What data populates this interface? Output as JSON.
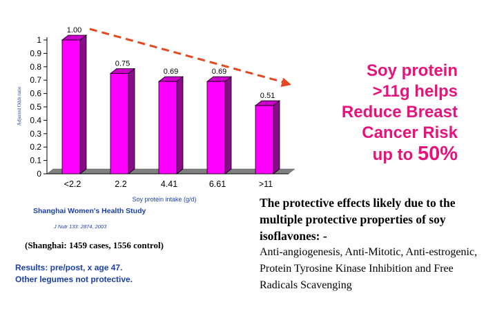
{
  "chart_data": {
    "type": "bar",
    "categories": [
      "<2.2",
      "2.2",
      "4.41",
      "6.61",
      ">11"
    ],
    "values": [
      1.0,
      0.75,
      0.69,
      0.69,
      0.51
    ],
    "data_labels": [
      "1.00",
      "0.75",
      "0.69",
      "0.69",
      "0.51"
    ],
    "xlabel": "Soy protein intake (g/d)",
    "ylabel": "Adjusted Odds ratio",
    "ylim": [
      0,
      1
    ],
    "yticks": [
      "0",
      "0.1",
      "0.2",
      "0.3",
      "0.4",
      "0.5",
      "0.6",
      "0.7",
      "0.8",
      "0.9",
      "1"
    ],
    "grid": false,
    "bar_color": "#ff00ff",
    "trend_arrow_color": "#e8461e"
  },
  "headline": {
    "line1": "Soy protein",
    "line2": ">11g helps",
    "line3": "Reduce Breast",
    "line4": "Cancer Risk",
    "line5_prefix": "up to ",
    "line5_value": "50%"
  },
  "study_name": "Shanghai Women's Health Study",
  "citation": "J Nutr 133: 2874, 2003",
  "cases_note": "(Shanghai: 1459 cases, 1556 control)",
  "results": {
    "line1": "Results: pre/post, x age 47.",
    "line2": "Other legumes not protective."
  },
  "protective": {
    "lead": "The protective effects likely due to the multiple protective properties of soy isoflavones: -",
    "mechanisms": "Anti-angiogenesis, Anti-Mitotic, Anti-estrogenic, Protein Tyrosine Kinase Inhibition and Free Radicals Scavenging"
  }
}
